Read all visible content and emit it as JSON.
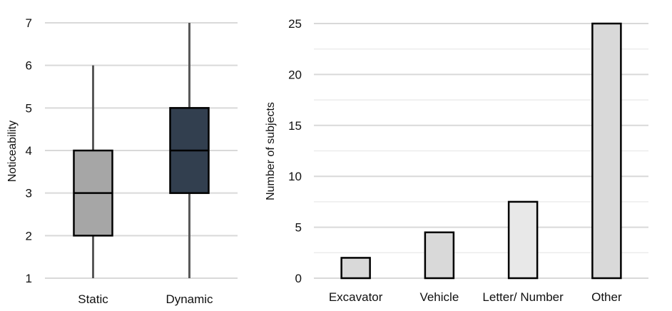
{
  "chart_data": [
    {
      "type": "box",
      "ylabel": "Noticeability",
      "ylim": [
        1,
        7
      ],
      "yticks": [
        1,
        2,
        3,
        4,
        5,
        6,
        7
      ],
      "grid": true,
      "legend": "none",
      "categories": [
        "Static",
        "Dynamic"
      ],
      "boxes": [
        {
          "category": "Static",
          "min": 1,
          "q1": 2,
          "median": 3,
          "q3": 4,
          "max": 6,
          "color": "#a6a6a6"
        },
        {
          "category": "Dynamic",
          "min": 1,
          "q1": 3,
          "median": 4,
          "q3": 5,
          "max": 7,
          "color": "#323f4f"
        }
      ]
    },
    {
      "type": "bar",
      "ylabel": "Number of subjects",
      "ylim": [
        0,
        25
      ],
      "yticks": [
        0,
        5,
        10,
        15,
        20,
        25
      ],
      "grid": true,
      "legend": "none",
      "categories": [
        "Excavator",
        "Vehicle",
        "Letter/ Number",
        "Other"
      ],
      "values": [
        2,
        4.5,
        7.5,
        25
      ],
      "colors": [
        "#d9d9d9",
        "#d9d9d9",
        "#e8e8e8",
        "#d9d9d9"
      ]
    }
  ]
}
